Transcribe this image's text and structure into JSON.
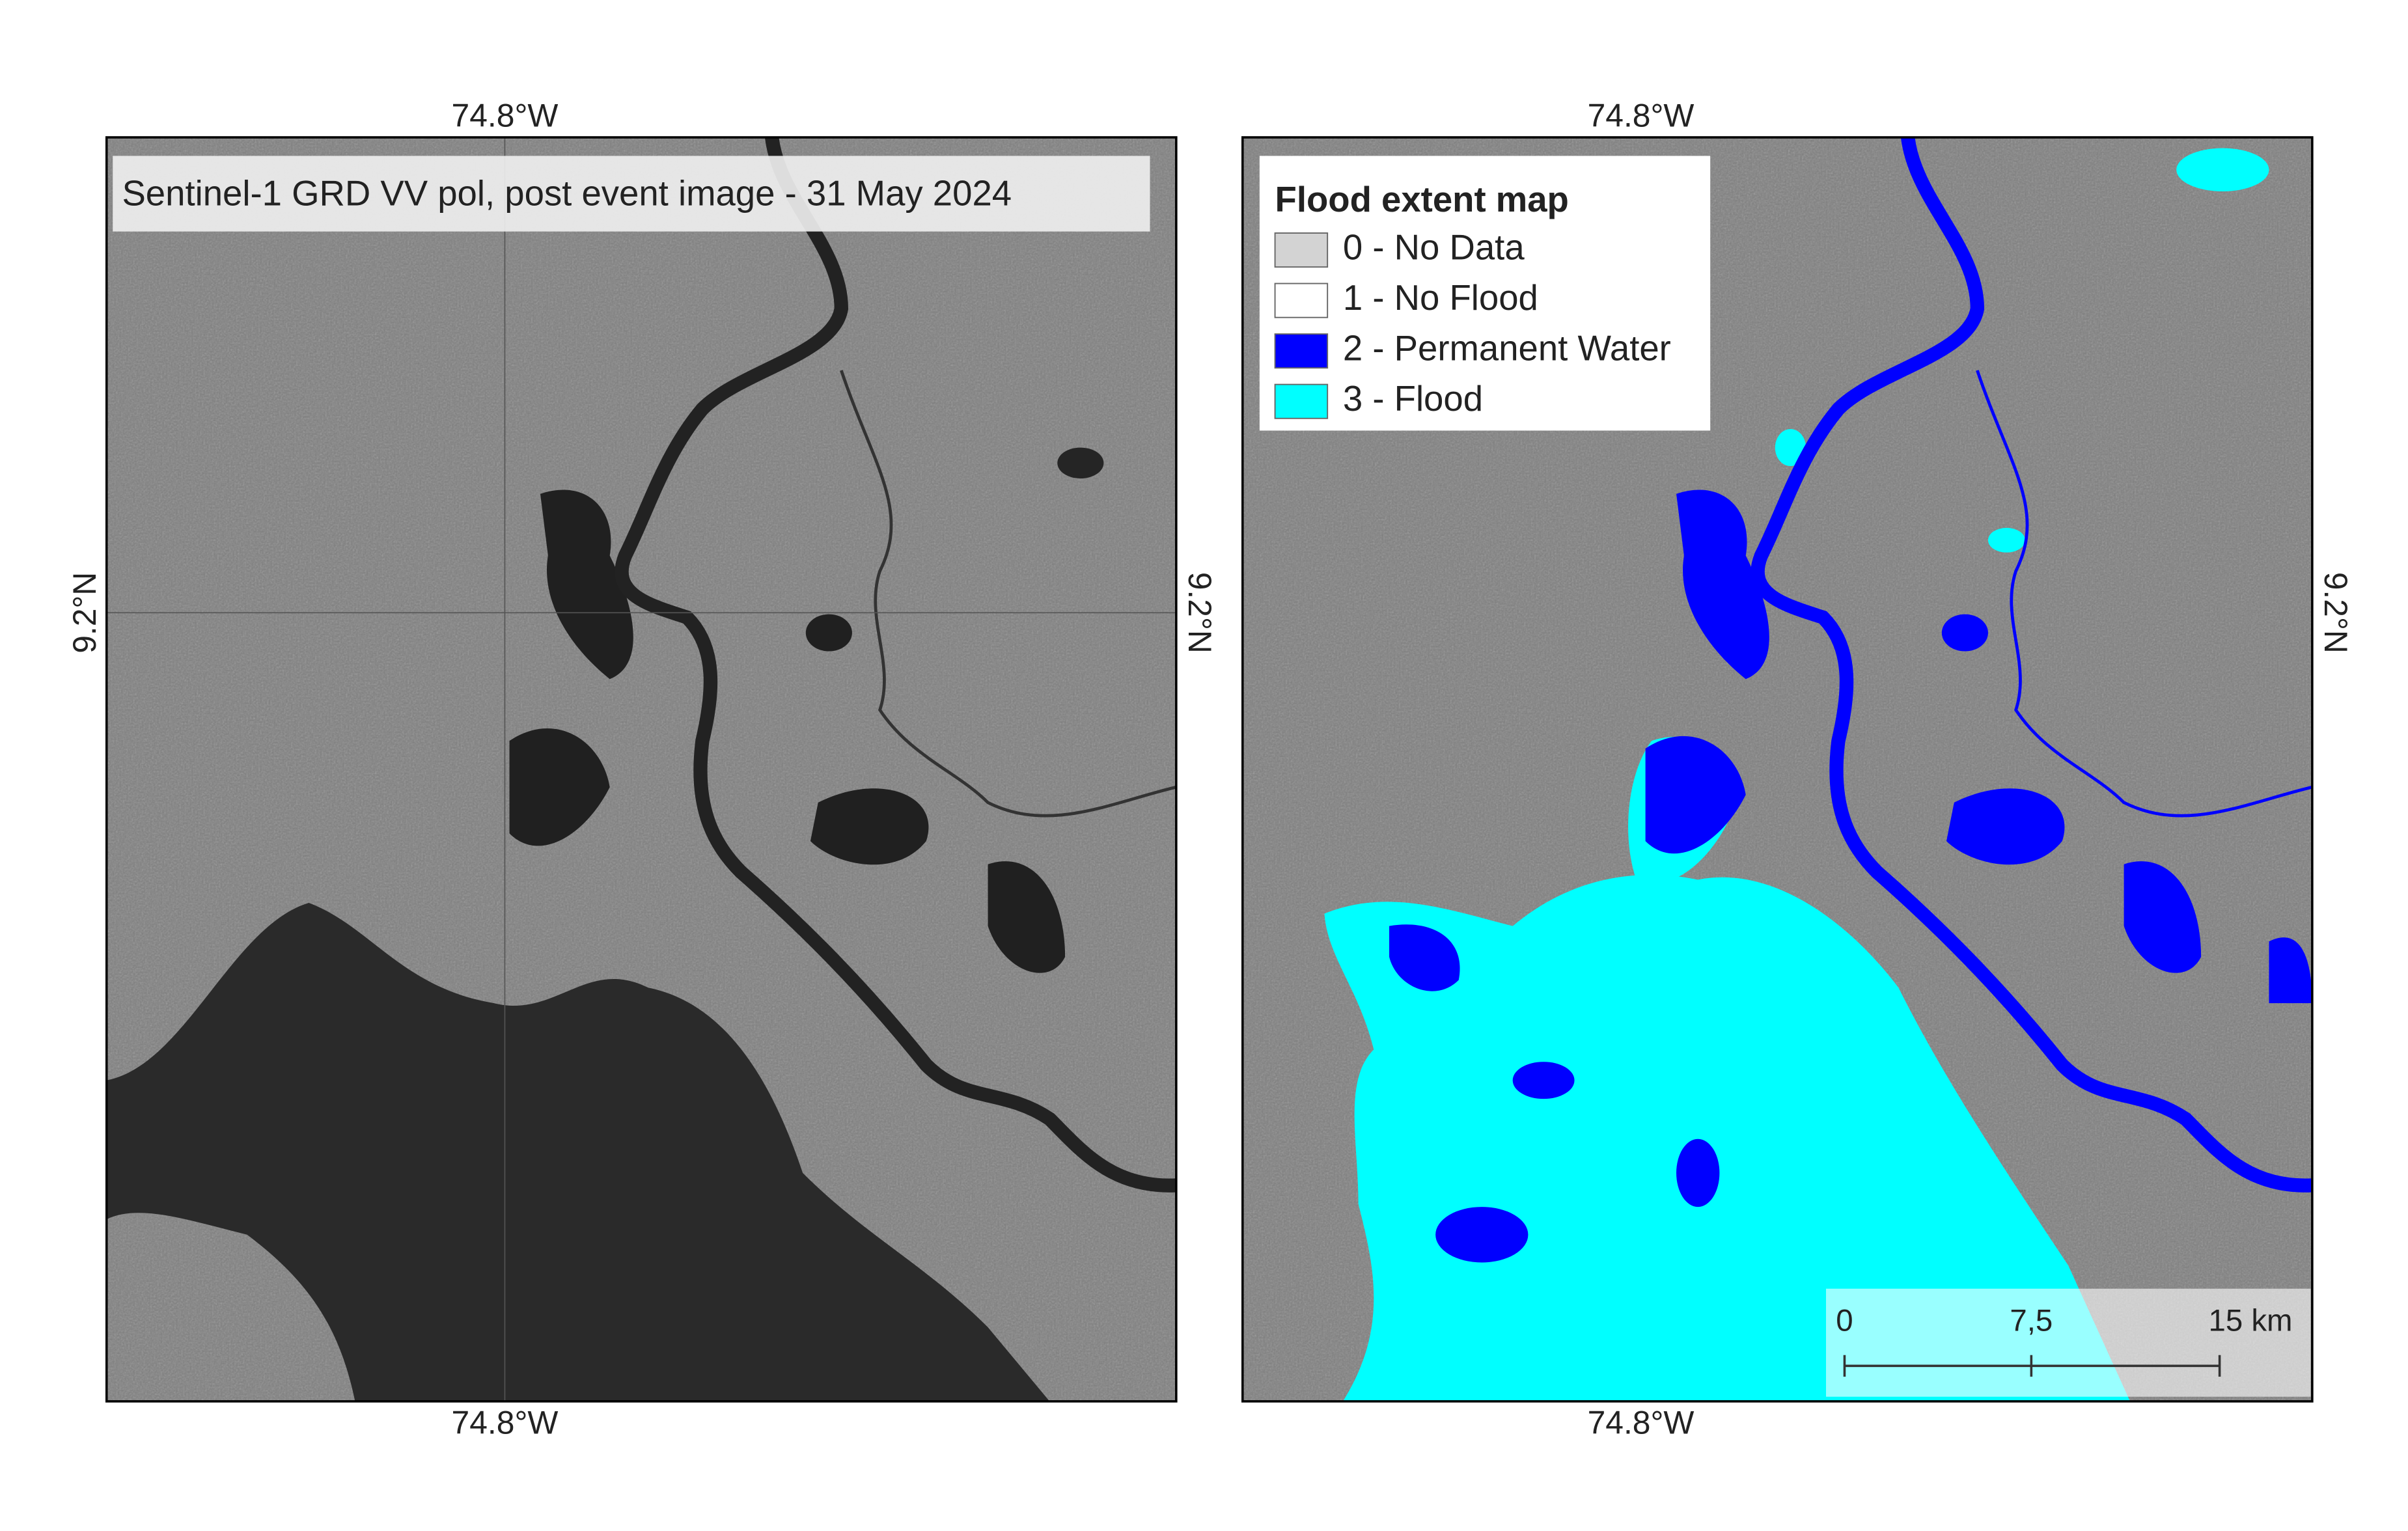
{
  "left_map": {
    "title": "Sentinel-1 GRD VV pol, post event image - 31 May 2024",
    "lon_top": "74.8°W",
    "lon_bottom": "74.8°W",
    "lat_left": "9.2°N",
    "lat_right": "9.2°N"
  },
  "right_map": {
    "lon_top": "74.8°W",
    "lon_bottom": "74.8°W",
    "lat_right": "9.2°N",
    "legend": {
      "title": "Flood extent map",
      "items": [
        {
          "label": "0 - No Data",
          "color": "#d3d3d3"
        },
        {
          "label": "1 - No Flood",
          "color": "#ffffff"
        },
        {
          "label": "2 - Permanent Water",
          "color": "#0000ff"
        },
        {
          "label": "3 - Flood",
          "color": "#00ffff"
        }
      ]
    },
    "scale_bar": {
      "labels": [
        "0",
        "7,5",
        "15 km"
      ]
    }
  }
}
